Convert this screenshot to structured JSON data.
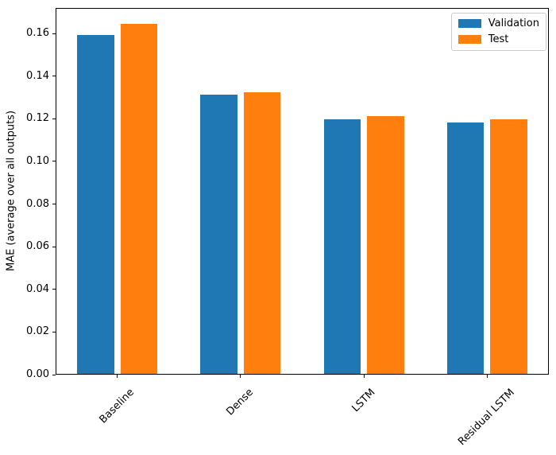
{
  "figure": {
    "background": "#ffffff",
    "axis_color": "#000000",
    "legend_border_color": "#cccccc"
  },
  "chart_data": {
    "type": "bar",
    "title": "",
    "xlabel": "",
    "ylabel": "MAE (average over all outputs)",
    "categories": [
      "Baseline",
      "Dense",
      "LSTM",
      "Residual LSTM"
    ],
    "series": [
      {
        "name": "Validation",
        "color": "#1f77b4",
        "values": [
          0.159,
          0.131,
          0.1195,
          0.118
        ]
      },
      {
        "name": "Test",
        "color": "#ff7f0e",
        "values": [
          0.164,
          0.132,
          0.121,
          0.1195
        ]
      }
    ],
    "ylim": [
      0,
      0.172
    ],
    "xlim": [
      -0.5,
      3.5
    ],
    "ytick_values": [
      0,
      0.02,
      0.04,
      0.06,
      0.08,
      0.1,
      0.12,
      0.14,
      0.16
    ],
    "ytick_labels": [
      "0.00",
      "0.02",
      "0.04",
      "0.06",
      "0.08",
      "0.10",
      "0.12",
      "0.14",
      "0.16"
    ],
    "x_tick_rotation": 45,
    "bar_width": 0.3,
    "bar_gap": 0.05,
    "grid": false,
    "legend_position": "upper right"
  }
}
